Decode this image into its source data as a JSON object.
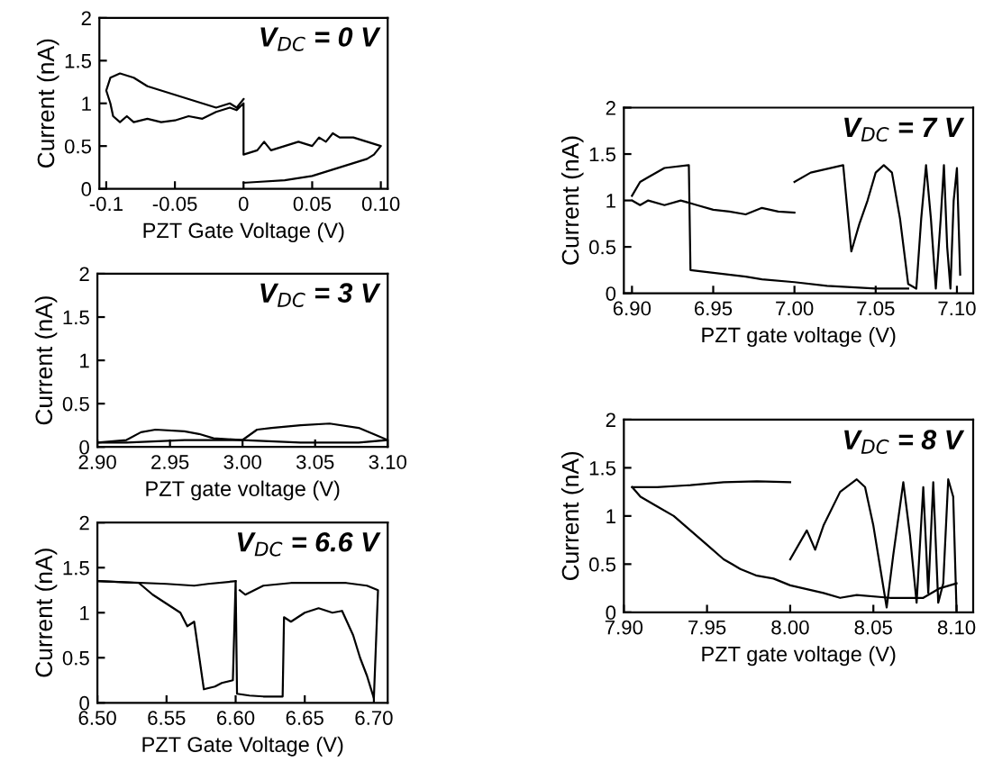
{
  "chart_data": [
    {
      "type": "line",
      "title": "V$_{DC}$ = 0 V",
      "xlabel": "PZT Gate Voltage (V)",
      "ylabel": "Current (nA)",
      "xlim": [
        -0.105,
        0.105
      ],
      "ylim": [
        0,
        2
      ],
      "xticks": [
        {
          "value": -0.1,
          "label": "-0.1"
        },
        {
          "value": -0.05,
          "label": "-0.05"
        },
        {
          "value": 0,
          "label": "0"
        },
        {
          "value": 0.05,
          "label": "0.05"
        },
        {
          "value": 0.1,
          "label": "0.10"
        }
      ],
      "yticks": [
        0,
        0.5,
        1,
        1.5,
        2
      ],
      "grid": false,
      "legend": false,
      "series": [
        {
          "color": "#000000",
          "x": [
            0,
            -0.005,
            -0.01,
            -0.02,
            -0.03,
            -0.04,
            -0.05,
            -0.06,
            -0.07,
            -0.08,
            -0.09,
            -0.097,
            -0.1,
            -0.097,
            -0.095,
            -0.09,
            -0.085,
            -0.08,
            -0.07,
            -0.06,
            -0.05,
            -0.04,
            -0.03,
            -0.02,
            -0.01,
            -0.005,
            0,
            0,
            0.01,
            0.015,
            0.02,
            0.03,
            0.04,
            0.05,
            0.055,
            0.06,
            0.065,
            0.07,
            0.08,
            0.09,
            0.1,
            0.095,
            0.09,
            0.08,
            0.06,
            0.05,
            0.03,
            0.01,
            0
          ],
          "values": [
            1.05,
            0.95,
            1.0,
            0.95,
            1.0,
            1.05,
            1.1,
            1.15,
            1.2,
            1.3,
            1.35,
            1.3,
            1.15,
            1.0,
            0.85,
            0.78,
            0.85,
            0.78,
            0.82,
            0.78,
            0.8,
            0.85,
            0.82,
            0.9,
            0.95,
            0.92,
            1.0,
            0.4,
            0.45,
            0.55,
            0.45,
            0.5,
            0.55,
            0.5,
            0.6,
            0.55,
            0.65,
            0.6,
            0.6,
            0.55,
            0.5,
            0.4,
            0.35,
            0.3,
            0.2,
            0.15,
            0.1,
            0.08,
            0.07
          ]
        }
      ]
    },
    {
      "type": "line",
      "title": "V$_{DC}$ = 3 V",
      "xlabel": "PZT gate voltage (V)",
      "ylabel": "Current (nA)",
      "xlim": [
        2.9,
        3.1
      ],
      "ylim": [
        0,
        2
      ],
      "xticks": [
        {
          "value": 2.9,
          "label": "2.90"
        },
        {
          "value": 2.95,
          "label": "2.95"
        },
        {
          "value": 3.0,
          "label": "3.00"
        },
        {
          "value": 3.05,
          "label": "3.05"
        },
        {
          "value": 3.1,
          "label": "3.10"
        }
      ],
      "yticks": [
        0,
        0.5,
        1,
        1.5,
        2
      ],
      "grid": false,
      "legend": false,
      "series": [
        {
          "color": "#000000",
          "x": [
            2.9,
            2.92,
            2.93,
            2.94,
            2.96,
            2.97,
            2.98,
            3.0,
            3.01,
            3.02,
            3.04,
            3.06,
            3.08,
            3.09,
            3.1
          ],
          "values": [
            0.05,
            0.08,
            0.17,
            0.2,
            0.18,
            0.15,
            0.1,
            0.08,
            0.2,
            0.22,
            0.25,
            0.27,
            0.22,
            0.15,
            0.08
          ]
        },
        {
          "color": "#000000",
          "x": [
            3.1,
            3.08,
            3.04,
            3.0,
            2.96,
            2.92,
            2.9
          ],
          "values": [
            0.08,
            0.05,
            0.05,
            0.08,
            0.08,
            0.05,
            0.05
          ]
        }
      ]
    },
    {
      "type": "line",
      "title": "V$_{DC}$ = 6.6 V",
      "xlabel": "PZT Gate Voltage (V)",
      "ylabel": "Current (nA)",
      "xlim": [
        6.5,
        6.71
      ],
      "ylim": [
        0,
        2
      ],
      "xticks": [
        {
          "value": 6.5,
          "label": "6.50"
        },
        {
          "value": 6.55,
          "label": "6.55"
        },
        {
          "value": 6.6,
          "label": "6.60"
        },
        {
          "value": 6.65,
          "label": "6.65"
        },
        {
          "value": 6.7,
          "label": "6.70"
        }
      ],
      "yticks": [
        0,
        0.5,
        1,
        1.5,
        2
      ],
      "grid": false,
      "legend": false,
      "series": [
        {
          "color": "#000000",
          "x": [
            6.5,
            6.53,
            6.54,
            6.55,
            6.56,
            6.565,
            6.57,
            6.577,
            6.585,
            6.59,
            6.598,
            6.6,
            6.601,
            6.61,
            6.62,
            6.634,
            6.635,
            6.64,
            6.65,
            6.66,
            6.67,
            6.677,
            6.685,
            6.69,
            6.695,
            6.7,
            6.703,
            6.695,
            6.68,
            6.66,
            6.64,
            6.62,
            6.607,
            6.603
          ],
          "values": [
            1.35,
            1.33,
            1.2,
            1.1,
            1.0,
            0.85,
            0.9,
            0.15,
            0.18,
            0.22,
            0.25,
            1.35,
            0.1,
            0.08,
            0.07,
            0.07,
            0.95,
            0.9,
            1.0,
            1.05,
            1.0,
            1.02,
            0.75,
            0.5,
            0.3,
            0.05,
            1.25,
            1.3,
            1.33,
            1.33,
            1.33,
            1.3,
            1.2,
            1.25
          ]
        },
        {
          "color": "#000000",
          "x": [
            6.5,
            6.55,
            6.57,
            6.58,
            6.6
          ],
          "values": [
            1.35,
            1.32,
            1.3,
            1.32,
            1.35
          ]
        }
      ]
    },
    {
      "type": "line",
      "title": "V$_{DC}$ = 7 V",
      "xlabel": "PZT gate voltage (V)",
      "ylabel": "Current (nA)",
      "xlim": [
        6.895,
        7.11
      ],
      "ylim": [
        0,
        2
      ],
      "xticks": [
        {
          "value": 6.9,
          "label": "6.90"
        },
        {
          "value": 6.95,
          "label": "6.95"
        },
        {
          "value": 7.0,
          "label": "7.00"
        },
        {
          "value": 7.05,
          "label": "7.05"
        },
        {
          "value": 7.1,
          "label": "7.10"
        }
      ],
      "yticks": [
        0,
        0.5,
        1,
        1.5,
        2
      ],
      "grid": false,
      "legend": false,
      "series": [
        {
          "color": "#000000",
          "x": [
            6.9,
            6.905,
            6.91,
            6.92,
            6.935,
            6.936,
            6.95,
            6.97,
            6.98,
            7.0,
            7.02,
            7.05,
            7.07
          ],
          "values": [
            1.05,
            1.2,
            1.25,
            1.35,
            1.38,
            0.25,
            0.22,
            0.18,
            0.15,
            0.12,
            0.08,
            0.05,
            0.05
          ]
        },
        {
          "color": "#000000",
          "x": [
            6.9,
            6.905,
            6.91,
            6.92,
            6.93,
            6.94,
            6.95,
            6.96,
            6.97,
            6.98,
            6.99,
            7.0
          ],
          "values": [
            1.0,
            0.95,
            1.0,
            0.95,
            1.0,
            0.95,
            0.9,
            0.88,
            0.85,
            0.92,
            0.88,
            0.87
          ]
        },
        {
          "color": "#000000",
          "x": [
            7.0,
            7.01,
            7.03,
            7.035,
            7.04,
            7.045,
            7.05,
            7.055,
            7.06,
            7.065,
            7.07,
            7.075,
            7.078,
            7.081,
            7.084,
            7.087,
            7.09,
            7.092,
            7.094,
            7.096,
            7.098,
            7.1,
            7.102
          ],
          "values": [
            1.2,
            1.3,
            1.38,
            0.45,
            0.75,
            1.0,
            1.3,
            1.38,
            1.3,
            0.8,
            0.1,
            0.05,
            0.8,
            1.38,
            0.8,
            0.05,
            0.8,
            1.38,
            0.5,
            0.05,
            1.0,
            1.35,
            0.2
          ]
        }
      ]
    },
    {
      "type": "line",
      "title": "V$_{DC}$ = 8 V",
      "xlabel": "PZT gate voltage (V)",
      "ylabel": "Current (nA)",
      "xlim": [
        7.9,
        8.11
      ],
      "ylim": [
        0,
        2
      ],
      "xticks": [
        {
          "value": 7.9,
          "label": "7.90"
        },
        {
          "value": 7.95,
          "label": "7.95"
        },
        {
          "value": 8.0,
          "label": "8.00"
        },
        {
          "value": 8.05,
          "label": "8.05"
        },
        {
          "value": 8.1,
          "label": "8.10"
        }
      ],
      "yticks": [
        0,
        0.5,
        1,
        1.5,
        2
      ],
      "grid": false,
      "legend": false,
      "series": [
        {
          "color": "#000000",
          "x": [
            7.905,
            7.92,
            7.94,
            7.96,
            7.98,
            8.0
          ],
          "values": [
            1.3,
            1.3,
            1.32,
            1.35,
            1.36,
            1.35
          ]
        },
        {
          "color": "#000000",
          "x": [
            7.905,
            7.91,
            7.92,
            7.93,
            7.94,
            7.95,
            7.96,
            7.965,
            7.97,
            7.98,
            7.99,
            8.0,
            8.02,
            8.03,
            8.04,
            8.06,
            8.08,
            8.09,
            8.1
          ],
          "values": [
            1.3,
            1.2,
            1.1,
            1.0,
            0.85,
            0.7,
            0.55,
            0.5,
            0.45,
            0.38,
            0.35,
            0.28,
            0.2,
            0.15,
            0.18,
            0.15,
            0.15,
            0.25,
            0.3
          ]
        },
        {
          "color": "#000000",
          "x": [
            8.0,
            8.01,
            8.015,
            8.02,
            8.03,
            8.04,
            8.045,
            8.05,
            8.058,
            8.062,
            8.068,
            8.072,
            8.076,
            8.08,
            8.083,
            8.086,
            8.089,
            8.092,
            8.095,
            8.098,
            8.1
          ],
          "values": [
            0.55,
            0.85,
            0.65,
            0.9,
            1.25,
            1.38,
            1.3,
            0.9,
            0.05,
            0.6,
            1.35,
            0.8,
            0.1,
            1.3,
            0.2,
            1.35,
            0.1,
            0.3,
            1.38,
            1.2,
            0.02
          ]
        }
      ]
    }
  ]
}
